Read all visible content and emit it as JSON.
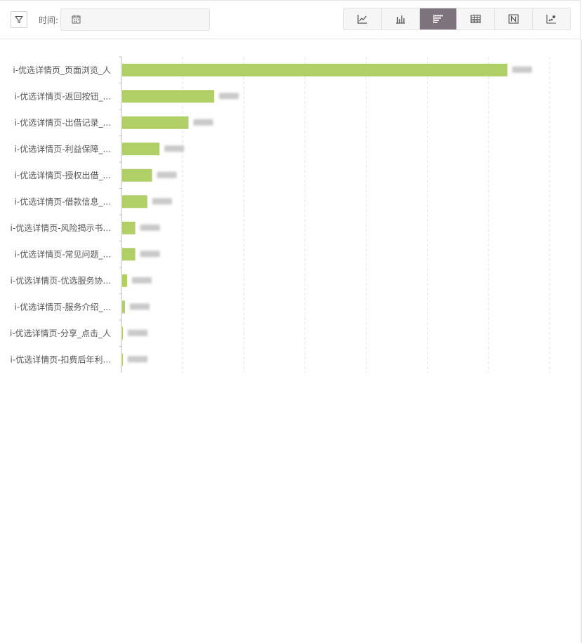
{
  "toolbar": {
    "time_label": "时间:",
    "view_options": [
      {
        "icon": "line-chart-icon",
        "active": false
      },
      {
        "icon": "bar-chart-icon",
        "active": false
      },
      {
        "icon": "horizontal-bar-icon",
        "active": true
      },
      {
        "icon": "table-icon",
        "active": false
      },
      {
        "icon": "number-icon",
        "active": false
      },
      {
        "icon": "scatter-icon",
        "active": false
      }
    ]
  },
  "colors": {
    "bar": "#b0cf66",
    "active_view": "#7d737d",
    "grid": "#e2e2e2"
  },
  "chart_data": {
    "type": "bar",
    "orientation": "horizontal",
    "categories": [
      "i-优选详情页_页面浏览_人",
      "i-优选详情页-返回按钮_...",
      "i-优选详情页-出借记录_...",
      "i-优选详情页-利益保障_...",
      "i-优选详情页-授权出借_...",
      "i-优选详情页-借款信息_...",
      "i-优选详情页-风险揭示书...",
      "i-优选详情页-常见问题_...",
      "i-优选详情页-优选服务协...",
      "i-优选详情页-服务介绍_...",
      "i-优选详情页-分享_点击_人",
      "i-优选详情页-扣费后年利..."
    ],
    "values": [
      0.6296,
      0.1505,
      0.1084,
      0.0611,
      0.0489,
      0.0411,
      0.0214,
      0.0214,
      0.008,
      0.0046,
      0.0012,
      0.0006
    ],
    "xlim": [
      0,
      0.7
    ],
    "grid": true,
    "data_labels_blurred": true
  }
}
